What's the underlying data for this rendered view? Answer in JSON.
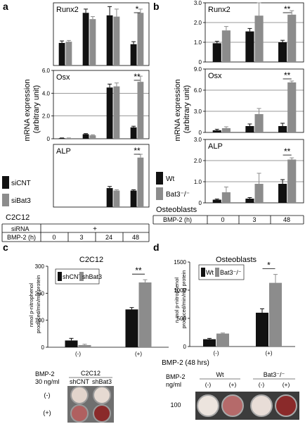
{
  "colors": {
    "bar_black": "#111111",
    "bar_gray": "#8c8c8c",
    "axis": "#000000",
    "well_rim": "#7a7a7a",
    "well_fill_light": "#e2d4cc",
    "well_fill_red": "#8a2a2a"
  },
  "panels": {
    "a": {
      "letter": "a",
      "ylabel": "mRNA expression\n(arbitrary unit)",
      "cell_line": "C2C12",
      "legend": [
        "siCNT",
        "siBat3"
      ],
      "row1_label": "siRNA",
      "row1_value": "+",
      "row2_label": "BMP-2 (h)",
      "times": [
        "0",
        "3",
        "24",
        "48"
      ]
    },
    "b": {
      "letter": "b",
      "ylabel": "mRNA expression\n(arbitrary unit)",
      "cell_line": "Osteoblasts",
      "legend": [
        "Wt",
        "Bat3⁻/⁻"
      ],
      "row_label": "BMP-2 (h)",
      "times": [
        "0",
        "3",
        "48"
      ]
    },
    "c": {
      "letter": "c",
      "title": "C2C12",
      "ylabel": "nmol p-nitrophenol\nproduced/min/mg protein",
      "legend": [
        "shCNT",
        "shBat3"
      ],
      "xlabel": "BMP-2 (48 hrs)",
      "plate": {
        "left_label": "BMP-2\n30 ng/ml",
        "header": "C2C12",
        "col_labels": [
          "shCNT",
          "shBat3"
        ],
        "row_labels": [
          "(-)",
          "(+)"
        ]
      }
    },
    "d": {
      "letter": "d",
      "title": "Osteoblasts",
      "ylabel": "n mol p-nitrophenol\nproduced/min/mg protein",
      "legend": [
        "Wt",
        "Bat3⁻/⁻"
      ],
      "xlabel": "BMP-2 (48 hrs)",
      "plate": {
        "left_label": "BMP-2\nng/ml",
        "group_labels": [
          "Wt",
          "Bat3⁻/⁻"
        ],
        "col_labels": [
          "(-)",
          "(+)",
          "(-)",
          "(+)"
        ],
        "row_label": "100"
      }
    }
  },
  "chart_data": [
    {
      "panel": "a",
      "type": "bar",
      "title": "Runx2",
      "categories": [
        "0 h",
        "3 h",
        "24 h",
        "48 h"
      ],
      "ylim": [
        0,
        2.5
      ],
      "yticks": [],
      "sig": {
        "index": 3,
        "label": "*"
      },
      "series": [
        {
          "name": "siCNT",
          "values": [
            0.9,
            2.1,
            2.0,
            0.85
          ],
          "errors": [
            0.08,
            0.15,
            0.35,
            0.1
          ]
        },
        {
          "name": "siBat3",
          "values": [
            0.95,
            1.85,
            1.95,
            2.1
          ],
          "errors": [
            0.05,
            0.1,
            0.3,
            0.15
          ]
        }
      ]
    },
    {
      "panel": "a",
      "type": "bar",
      "title": "Osx",
      "categories": [
        "0 h",
        "3 h",
        "24 h",
        "48 h"
      ],
      "ylim": [
        0,
        6.0
      ],
      "yticks": [
        "0",
        "2.0",
        "4.0",
        "6.0"
      ],
      "sig": {
        "index": 3,
        "label": "**"
      },
      "series": [
        {
          "name": "siCNT",
          "values": [
            0.05,
            0.4,
            4.5,
            1.0
          ],
          "errors": [
            0.02,
            0.05,
            0.3,
            0.1
          ]
        },
        {
          "name": "siBat3",
          "values": [
            0.05,
            0.3,
            4.6,
            5.0
          ],
          "errors": [
            0.02,
            0.05,
            0.3,
            0.5
          ]
        }
      ]
    },
    {
      "panel": "a",
      "type": "bar",
      "title": "ALP",
      "categories": [
        "0 h",
        "3 h",
        "24 h",
        "48 h"
      ],
      "ylim": [
        0,
        3.8
      ],
      "yticks": [],
      "sig": {
        "index": 3,
        "label": "**"
      },
      "series": [
        {
          "name": "siCNT",
          "values": [
            0,
            0,
            1.15,
            1.0
          ],
          "errors": [
            0,
            0,
            0.1,
            0.05
          ]
        },
        {
          "name": "siBat3",
          "values": [
            0,
            0,
            1.0,
            3.0
          ],
          "errors": [
            0,
            0,
            0.05,
            0.2
          ]
        }
      ]
    },
    {
      "panel": "b",
      "type": "bar",
      "title": "Runx2",
      "categories": [
        "0 h",
        "3 h",
        "48 h"
      ],
      "ylim": [
        0,
        3.0
      ],
      "yticks": [
        "0",
        "1.0",
        "2.0",
        "3.0"
      ],
      "sig": {
        "index": 2,
        "label": "**"
      },
      "series": [
        {
          "name": "Wt",
          "values": [
            0.95,
            1.55,
            1.0
          ],
          "errors": [
            0.1,
            0.15,
            0.1
          ]
        },
        {
          "name": "Bat3⁻/⁻",
          "values": [
            1.6,
            2.35,
            2.4
          ],
          "errors": [
            0.2,
            0.65,
            0.2
          ]
        }
      ]
    },
    {
      "panel": "b",
      "type": "bar",
      "title": "Osx",
      "categories": [
        "0 h",
        "3 h",
        "48 h"
      ],
      "ylim": [
        0,
        9.0
      ],
      "yticks": [
        "0",
        "3.0",
        "6.0",
        "9.0"
      ],
      "sig": {
        "index": 2,
        "label": "**"
      },
      "series": [
        {
          "name": "Wt",
          "values": [
            0.3,
            0.9,
            0.9
          ],
          "errors": [
            0.15,
            0.3,
            0.4
          ]
        },
        {
          "name": "Bat3⁻/⁻",
          "values": [
            0.6,
            2.6,
            7.1
          ],
          "errors": [
            0.2,
            0.8,
            0.2
          ]
        }
      ]
    },
    {
      "panel": "b",
      "type": "bar",
      "title": "ALP",
      "categories": [
        "0 h",
        "3 h",
        "48 h"
      ],
      "ylim": [
        0,
        3.0
      ],
      "yticks": [
        "0",
        "1.0",
        "2.0",
        "3.0"
      ],
      "sig": {
        "index": 2,
        "label": "**"
      },
      "series": [
        {
          "name": "Wt",
          "values": [
            0.15,
            0.2,
            0.9
          ],
          "errors": [
            0.03,
            0.05,
            0.2
          ]
        },
        {
          "name": "Bat3⁻/⁻",
          "values": [
            0.5,
            0.9,
            2.05
          ],
          "errors": [
            0.25,
            0.5,
            0.08
          ]
        }
      ]
    },
    {
      "panel": "c",
      "type": "bar",
      "title": "C2C12",
      "categories": [
        "(-)",
        "(+)"
      ],
      "ylim": [
        0,
        300
      ],
      "yticks": [
        "0",
        "100",
        "200",
        "300"
      ],
      "sig": {
        "index": 1,
        "label": "**"
      },
      "series": [
        {
          "name": "shCNT",
          "values": [
            25,
            140
          ],
          "errors": [
            8,
            7
          ]
        },
        {
          "name": "shBat3",
          "values": [
            8,
            240
          ],
          "errors": [
            3,
            10
          ]
        }
      ]
    },
    {
      "panel": "d",
      "type": "bar",
      "title": "Osteoblasts",
      "categories": [
        "(-)",
        "(+)"
      ],
      "ylim": [
        0,
        1500
      ],
      "yticks": [
        "0",
        "500",
        "1000",
        "1500"
      ],
      "sig": {
        "index": 1,
        "label": "*"
      },
      "series": [
        {
          "name": "Wt",
          "values": [
            130,
            600
          ],
          "errors": [
            15,
            70
          ]
        },
        {
          "name": "Bat3⁻/⁻",
          "values": [
            230,
            1130
          ],
          "errors": [
            10,
            150
          ]
        }
      ]
    }
  ]
}
